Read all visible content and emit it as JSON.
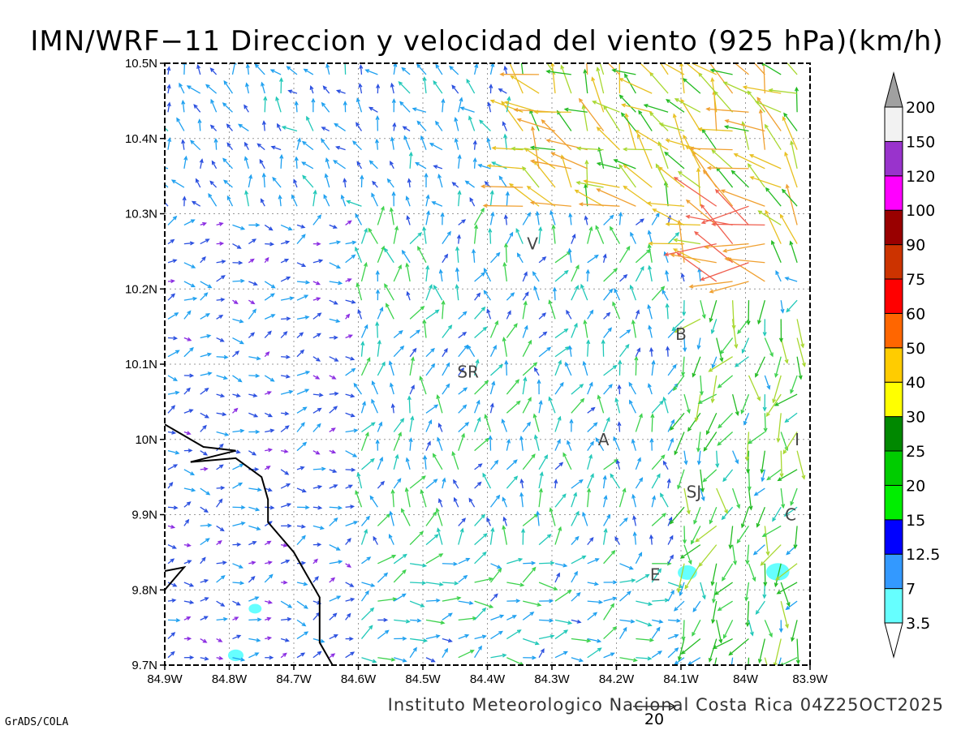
{
  "chart_data": {
    "type": "wind-vector-map",
    "title": "IMN/WRF−11 Direccion y velocidad del viento (925 hPa)(km/h)",
    "footer": "Instituto Meteorologico Nacional Costa Rica 04Z25OCT2025",
    "credit": "GrADS/COLA",
    "reference_vector": "20",
    "x_ticks": [
      "84.9W",
      "84.8W",
      "84.7W",
      "84.6W",
      "84.5W",
      "84.4W",
      "84.3W",
      "84.2W",
      "84.1W",
      "84W",
      "83.9W"
    ],
    "y_ticks": [
      "10.5N",
      "10.4N",
      "10.3N",
      "10.2N",
      "10.1N",
      "10N",
      "9.9N",
      "9.8N",
      "9.7N"
    ],
    "lon_range": [
      -84.9,
      -83.9
    ],
    "lat_range": [
      9.7,
      10.5
    ],
    "grid": true,
    "grid_spacing_deg": 0.1,
    "colorbar": {
      "labels": [
        "3.5",
        "7",
        "12.5",
        "15",
        "20",
        "25",
        "30",
        "40",
        "50",
        "60",
        "75",
        "90",
        "100",
        "120",
        "150",
        "200"
      ],
      "colors": [
        "#66ffff",
        "#3399ff",
        "#0000ff",
        "#00ee00",
        "#00cc00",
        "#008800",
        "#ffff00",
        "#ffcc00",
        "#ff6600",
        "#ff0000",
        "#cc3300",
        "#990000",
        "#ff00ff",
        "#9933cc",
        "#f2f2f2",
        "#a0a0a0"
      ],
      "extend": "both"
    },
    "speed_classes_kmh": [
      [
        0,
        3.5,
        "#8a2be2"
      ],
      [
        3.5,
        7,
        "#2a4fe0"
      ],
      [
        7,
        12.5,
        "#1ea0f0"
      ],
      [
        12.5,
        15,
        "#20c8b8"
      ],
      [
        15,
        20,
        "#3cd24c"
      ],
      [
        20,
        25,
        "#22bb22"
      ],
      [
        25,
        30,
        "#a8d830"
      ],
      [
        30,
        40,
        "#e8c020"
      ],
      [
        40,
        50,
        "#f0a030"
      ],
      [
        50,
        60,
        "#f06050"
      ]
    ],
    "locations": [
      {
        "label": "V",
        "lon": -84.33,
        "lat": 10.26
      },
      {
        "label": "SR",
        "lon": -84.43,
        "lat": 10.09
      },
      {
        "label": "B",
        "lon": -84.1,
        "lat": 10.14
      },
      {
        "label": "A",
        "lon": -84.22,
        "lat": 10.0
      },
      {
        "label": "I",
        "lon": -83.92,
        "lat": 10.0
      },
      {
        "label": "SJ",
        "lon": -84.08,
        "lat": 9.93
      },
      {
        "label": "C",
        "lon": -83.93,
        "lat": 9.9
      },
      {
        "label": "E",
        "lon": -84.14,
        "lat": 9.82
      }
    ],
    "coastline": [
      [
        -84.9,
        10.02
      ],
      [
        -84.84,
        9.99
      ],
      [
        -84.79,
        9.985
      ],
      [
        -84.86,
        9.97
      ],
      [
        -84.79,
        9.975
      ],
      [
        -84.75,
        9.95
      ],
      [
        -84.74,
        9.92
      ],
      [
        -84.74,
        9.89
      ],
      [
        -84.7,
        9.85
      ],
      [
        -84.68,
        9.82
      ],
      [
        -84.66,
        9.79
      ],
      [
        -84.66,
        9.73
      ],
      [
        -84.64,
        9.7
      ]
    ],
    "coastline_sw": [
      [
        -84.9,
        9.825
      ],
      [
        -84.87,
        9.83
      ],
      [
        -84.9,
        9.8
      ]
    ],
    "cyan_patches": [
      {
        "lon": -84.09,
        "lat": 9.823,
        "r": 0.015
      },
      {
        "lon": -83.95,
        "lat": 9.824,
        "r": 0.018
      },
      {
        "lon": -84.76,
        "lat": 9.775,
        "r": 0.01
      },
      {
        "lon": -84.79,
        "lat": 9.713,
        "r": 0.012
      }
    ],
    "wind_regions": [
      {
        "name": "northeast-jet",
        "lon": [
          -84.35,
          -83.9
        ],
        "lat": [
          10.22,
          10.5
        ],
        "dir_deg": 315,
        "speed": [
          20,
          45
        ]
      },
      {
        "name": "core-jet",
        "lon": [
          -84.05,
          -83.95
        ],
        "lat": [
          10.2,
          10.32
        ],
        "dir_deg": 290,
        "speed": [
          40,
          58
        ]
      },
      {
        "name": "north-plain",
        "lon": [
          -84.9,
          -84.35
        ],
        "lat": [
          10.3,
          10.5
        ],
        "dir_deg": 330,
        "speed": [
          4,
          14
        ]
      },
      {
        "name": "central",
        "lon": [
          -84.6,
          -84.1
        ],
        "lat": [
          9.85,
          10.3
        ],
        "dir_deg": 10,
        "speed": [
          5,
          18
        ]
      },
      {
        "name": "pacific-side",
        "lon": [
          -84.9,
          -84.6
        ],
        "lat": [
          9.7,
          10.3
        ],
        "dir_deg": 80,
        "speed": [
          2,
          10
        ]
      },
      {
        "name": "south-valley",
        "lon": [
          -84.6,
          -84.1
        ],
        "lat": [
          9.7,
          9.85
        ],
        "dir_deg": 70,
        "speed": [
          6,
          18
        ]
      },
      {
        "name": "caribbean-slope",
        "lon": [
          -84.1,
          -83.9
        ],
        "lat": [
          9.7,
          10.2
        ],
        "dir_deg": 200,
        "speed": [
          8,
          30
        ]
      }
    ]
  }
}
